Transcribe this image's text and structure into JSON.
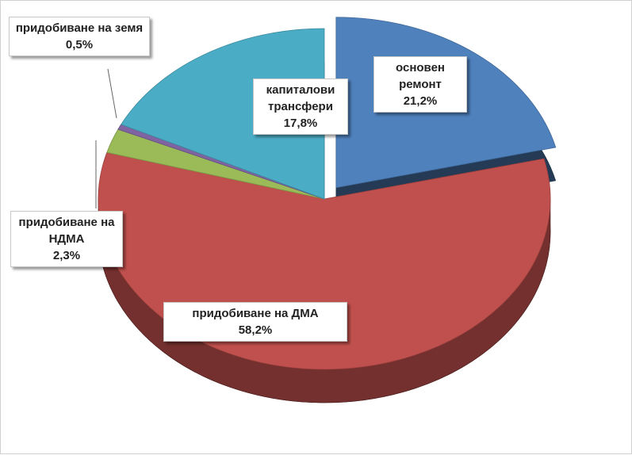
{
  "chart_data": {
    "type": "pie",
    "categories": [
      "основен ремонт",
      "придобиване на ДМА",
      "придобиване на НДМА",
      "придобиване на земя",
      "капиталови трансфери"
    ],
    "values": [
      21.2,
      58.2,
      2.3,
      0.5,
      17.8
    ],
    "value_labels": [
      "21,2%",
      "58,2%",
      "2,3%",
      "0,5%",
      "17,8%"
    ],
    "colors": [
      "#4f81bd",
      "#c0504d",
      "#9bbb59",
      "#8064a2",
      "#4bacc6"
    ],
    "explode": [
      true,
      false,
      false,
      false,
      false
    ],
    "three_d": true
  }
}
